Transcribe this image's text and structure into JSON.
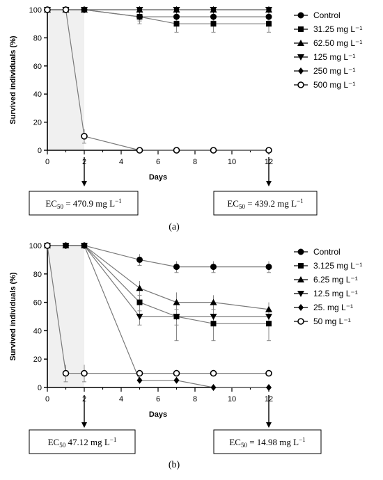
{
  "chart_data": [
    {
      "type": "line",
      "panel_label": "(a)",
      "ylabel": "Survived individuals (%)",
      "xlabel": "Days",
      "xlim": [
        0,
        12
      ],
      "ylim": [
        0,
        100
      ],
      "x_ticks": [
        0,
        2,
        4,
        6,
        8,
        10,
        12
      ],
      "y_ticks": [
        0,
        20,
        40,
        60,
        80,
        100
      ],
      "shaded_x_range": [
        0,
        2
      ],
      "legend_position": "right",
      "series": [
        {
          "name": "Control",
          "marker": "circle-filled",
          "x": [
            0,
            1,
            2,
            5,
            7,
            9,
            12
          ],
          "y": [
            100,
            100,
            100,
            95,
            95,
            95,
            95
          ],
          "err": [
            0,
            0,
            0,
            3,
            3,
            3,
            3
          ]
        },
        {
          "name": "31.25 mg L⁻¹",
          "marker": "square-filled",
          "x": [
            0,
            1,
            2,
            5,
            7,
            9,
            12
          ],
          "y": [
            100,
            100,
            100,
            95,
            90,
            90,
            90
          ],
          "err": [
            0,
            0,
            0,
            5,
            6,
            6,
            6
          ]
        },
        {
          "name": "62.50 mg L⁻¹",
          "marker": "triangle-up",
          "x": [
            0,
            1,
            2,
            5,
            7,
            9,
            12
          ],
          "y": [
            100,
            100,
            100,
            100,
            100,
            100,
            100
          ],
          "err": [
            0,
            0,
            0,
            0,
            0,
            0,
            0
          ]
        },
        {
          "name": "125 mg L⁻¹",
          "marker": "triangle-down",
          "x": [
            0,
            1,
            2,
            5,
            7,
            9,
            12
          ],
          "y": [
            100,
            100,
            100,
            100,
            100,
            100,
            100
          ],
          "err": [
            0,
            0,
            0,
            0,
            0,
            0,
            0
          ]
        },
        {
          "name": "250 mg L⁻¹",
          "marker": "diamond-filled",
          "x": [
            0,
            1,
            2,
            5,
            7,
            9,
            12
          ],
          "y": [
            100,
            100,
            100,
            100,
            100,
            100,
            100
          ],
          "err": [
            0,
            0,
            0,
            0,
            0,
            0,
            0
          ]
        },
        {
          "name": "500 mg L⁻¹",
          "marker": "circle-open",
          "x": [
            0,
            1,
            2,
            5,
            7,
            9,
            12
          ],
          "y": [
            100,
            100,
            10,
            0,
            0,
            0,
            0
          ],
          "err": [
            0,
            0,
            5,
            0,
            0,
            0,
            0
          ]
        }
      ],
      "annotations": [
        {
          "day": 2,
          "prefix": "EC",
          "sub": "50",
          "text": " = 470.9 mg L",
          "sup": "−1"
        },
        {
          "day": 12,
          "prefix": "EC",
          "sub": "50",
          "text": " = 439.2 mg L",
          "sup": "−1"
        }
      ]
    },
    {
      "type": "line",
      "panel_label": "(b)",
      "ylabel": "Survived individuals (%)",
      "xlabel": "Days",
      "xlim": [
        0,
        12
      ],
      "ylim": [
        0,
        100
      ],
      "x_ticks": [
        0,
        2,
        4,
        6,
        8,
        10,
        12
      ],
      "y_ticks": [
        0,
        20,
        40,
        60,
        80,
        100
      ],
      "shaded_x_range": [
        0,
        2
      ],
      "legend_position": "right",
      "series": [
        {
          "name": "Control",
          "marker": "circle-filled",
          "x": [
            0,
            1,
            2,
            5,
            7,
            9,
            12
          ],
          "y": [
            100,
            100,
            100,
            90,
            85,
            85,
            85
          ],
          "err": [
            0,
            0,
            0,
            4,
            4,
            4,
            4
          ]
        },
        {
          "name": "3.125 mg L⁻¹",
          "marker": "square-filled",
          "x": [
            0,
            1,
            2,
            5,
            7,
            9,
            12
          ],
          "y": [
            100,
            100,
            100,
            60,
            50,
            45,
            45
          ],
          "err": [
            0,
            0,
            0,
            6,
            17,
            12,
            12
          ]
        },
        {
          "name": "6.25 mg L⁻¹",
          "marker": "triangle-up",
          "x": [
            0,
            1,
            2,
            5,
            7,
            9,
            12
          ],
          "y": [
            100,
            100,
            100,
            70,
            60,
            60,
            55
          ],
          "err": [
            0,
            0,
            0,
            5,
            5,
            5,
            5
          ]
        },
        {
          "name": "12.5 mg L⁻¹",
          "marker": "triangle-down",
          "x": [
            0,
            1,
            2,
            5,
            7,
            9,
            12
          ],
          "y": [
            100,
            100,
            100,
            50,
            50,
            50,
            50
          ],
          "err": [
            0,
            0,
            0,
            6,
            6,
            6,
            6
          ]
        },
        {
          "name": "25. mg L⁻¹",
          "marker": "diamond-filled",
          "x": [
            0,
            1,
            2,
            5,
            7,
            9,
            12
          ],
          "y": [
            100,
            100,
            100,
            5,
            5,
            0,
            0
          ],
          "err": [
            0,
            0,
            0,
            0,
            0,
            0,
            0
          ]
        },
        {
          "name": "50 mg L⁻¹",
          "marker": "circle-open",
          "x": [
            0,
            1,
            2,
            5,
            7,
            9,
            12
          ],
          "y": [
            100,
            10,
            10,
            10,
            10,
            10,
            10
          ],
          "err": [
            0,
            6,
            6,
            0,
            0,
            0,
            0
          ]
        }
      ],
      "annotations": [
        {
          "day": 2,
          "prefix": "EC",
          "sub": "50",
          "text": " 47.12 mg L",
          "sup": "−1"
        },
        {
          "day": 12,
          "prefix": "EC",
          "sub": "50",
          "text": " = 14.98 mg L",
          "sup": "−1"
        }
      ]
    }
  ]
}
